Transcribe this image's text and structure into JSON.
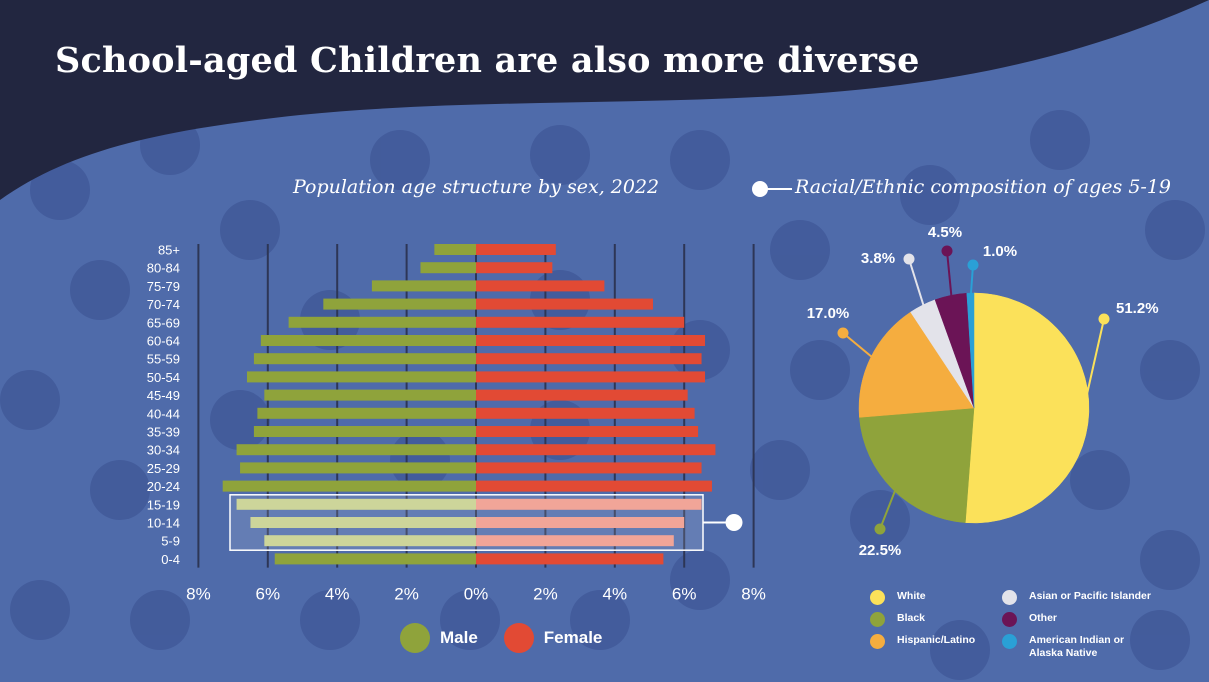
{
  "title": "School-aged Children are also more diverse",
  "chart_data": [
    {
      "type": "bar",
      "title": "Population age structure by sex, 2022",
      "categories": [
        "85+",
        "80-84",
        "75-79",
        "70-74",
        "65-69",
        "60-64",
        "55-59",
        "50-54",
        "45-49",
        "40-44",
        "35-39",
        "30-34",
        "25-29",
        "20-24",
        "15-19",
        "10-14",
        "5-9",
        "0-4"
      ],
      "series": [
        {
          "name": "Male",
          "color": "#8fa33b",
          "values": [
            1.2,
            1.6,
            3.0,
            4.4,
            5.4,
            6.2,
            6.4,
            6.6,
            6.1,
            6.3,
            6.4,
            6.9,
            6.8,
            7.3,
            6.9,
            6.5,
            6.1,
            5.8
          ]
        },
        {
          "name": "Female",
          "color": "#e24a34",
          "values": [
            2.3,
            2.2,
            3.7,
            5.1,
            6.0,
            6.6,
            6.5,
            6.6,
            6.1,
            6.3,
            6.4,
            6.9,
            6.5,
            6.8,
            6.5,
            6.0,
            5.7,
            5.4
          ]
        }
      ],
      "xlim": [
        -8,
        8
      ],
      "xticks": [
        "8%",
        "6%",
        "4%",
        "2%",
        "0%",
        "2%",
        "4%",
        "6%",
        "8%"
      ],
      "highlight": [
        "15-19",
        "10-14",
        "5-9"
      ]
    },
    {
      "type": "pie",
      "title": "Racial/Ethnic composition of ages 5-19",
      "labels": [
        "White",
        "Black",
        "Hispanic/Latino",
        "Asian or Pacific Islander",
        "Other",
        "American Indian or\nAlaska Native"
      ],
      "values": [
        51.2,
        22.5,
        17.0,
        3.8,
        4.5,
        1.0
      ],
      "value_labels": [
        "51.2%",
        "22.5%",
        "17.0%",
        "3.8%",
        "4.5%",
        "1.0%"
      ],
      "colors": [
        "#fbe15a",
        "#8fa33b",
        "#f5ad3f",
        "#e3e3ea",
        "#6b1456",
        "#2aa0d6"
      ]
    }
  ]
}
